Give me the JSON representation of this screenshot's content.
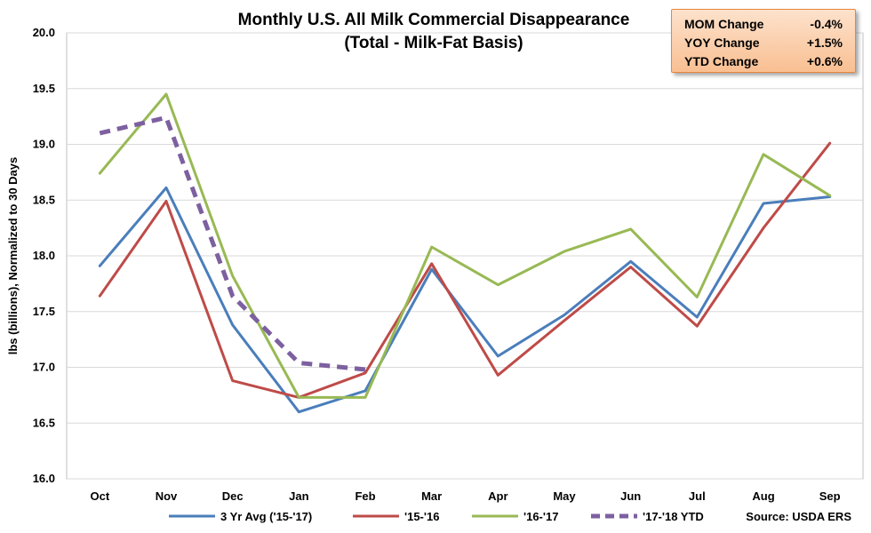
{
  "chart_data": {
    "type": "line",
    "title": "Monthly U.S. All Milk Commercial Disappearance",
    "subtitle": "(Total - Milk-Fat Basis)",
    "ylabel": "lbs (billions), Normalized to 30 Days",
    "xlabel": "",
    "ylim": [
      16.0,
      20.0
    ],
    "yticks": [
      "16.0",
      "16.5",
      "17.0",
      "17.5",
      "18.0",
      "18.5",
      "19.0",
      "19.5",
      "20.0"
    ],
    "grid": true,
    "legend_position": "bottom",
    "categories": [
      "Oct",
      "Nov",
      "Dec",
      "Jan",
      "Feb",
      "Mar",
      "Apr",
      "May",
      "Jun",
      "Jul",
      "Aug",
      "Sep"
    ],
    "series": [
      {
        "name": "3 Yr Avg ('15-'17)",
        "color": "#4a7ebb",
        "dashed": false,
        "values": [
          17.91,
          18.61,
          17.38,
          16.6,
          16.79,
          17.88,
          17.1,
          17.47,
          17.95,
          17.45,
          18.47,
          18.53
        ]
      },
      {
        "name": "'15-'16",
        "color": "#be4b48",
        "dashed": false,
        "values": [
          17.64,
          18.49,
          16.88,
          16.73,
          16.95,
          17.93,
          16.93,
          17.42,
          17.9,
          17.37,
          18.25,
          19.01
        ]
      },
      {
        "name": "'16-'17",
        "color": "#98b954",
        "dashed": false,
        "values": [
          18.74,
          19.45,
          17.82,
          16.73,
          16.73,
          18.08,
          17.74,
          18.04,
          18.24,
          17.63,
          18.91,
          18.54
        ]
      },
      {
        "name": "'17-'18 YTD",
        "color": "#7d60a0",
        "dashed": true,
        "values": [
          19.1,
          19.24,
          17.64,
          17.04,
          16.98,
          null,
          null,
          null,
          null,
          null,
          null,
          null
        ]
      }
    ],
    "source": "Source: USDA ERS"
  },
  "stats": [
    {
      "label": "MOM Change",
      "value": "-0.4%"
    },
    {
      "label": "YOY Change",
      "value": "+1.5%"
    },
    {
      "label": "YTD Change",
      "value": "+0.6%"
    }
  ]
}
